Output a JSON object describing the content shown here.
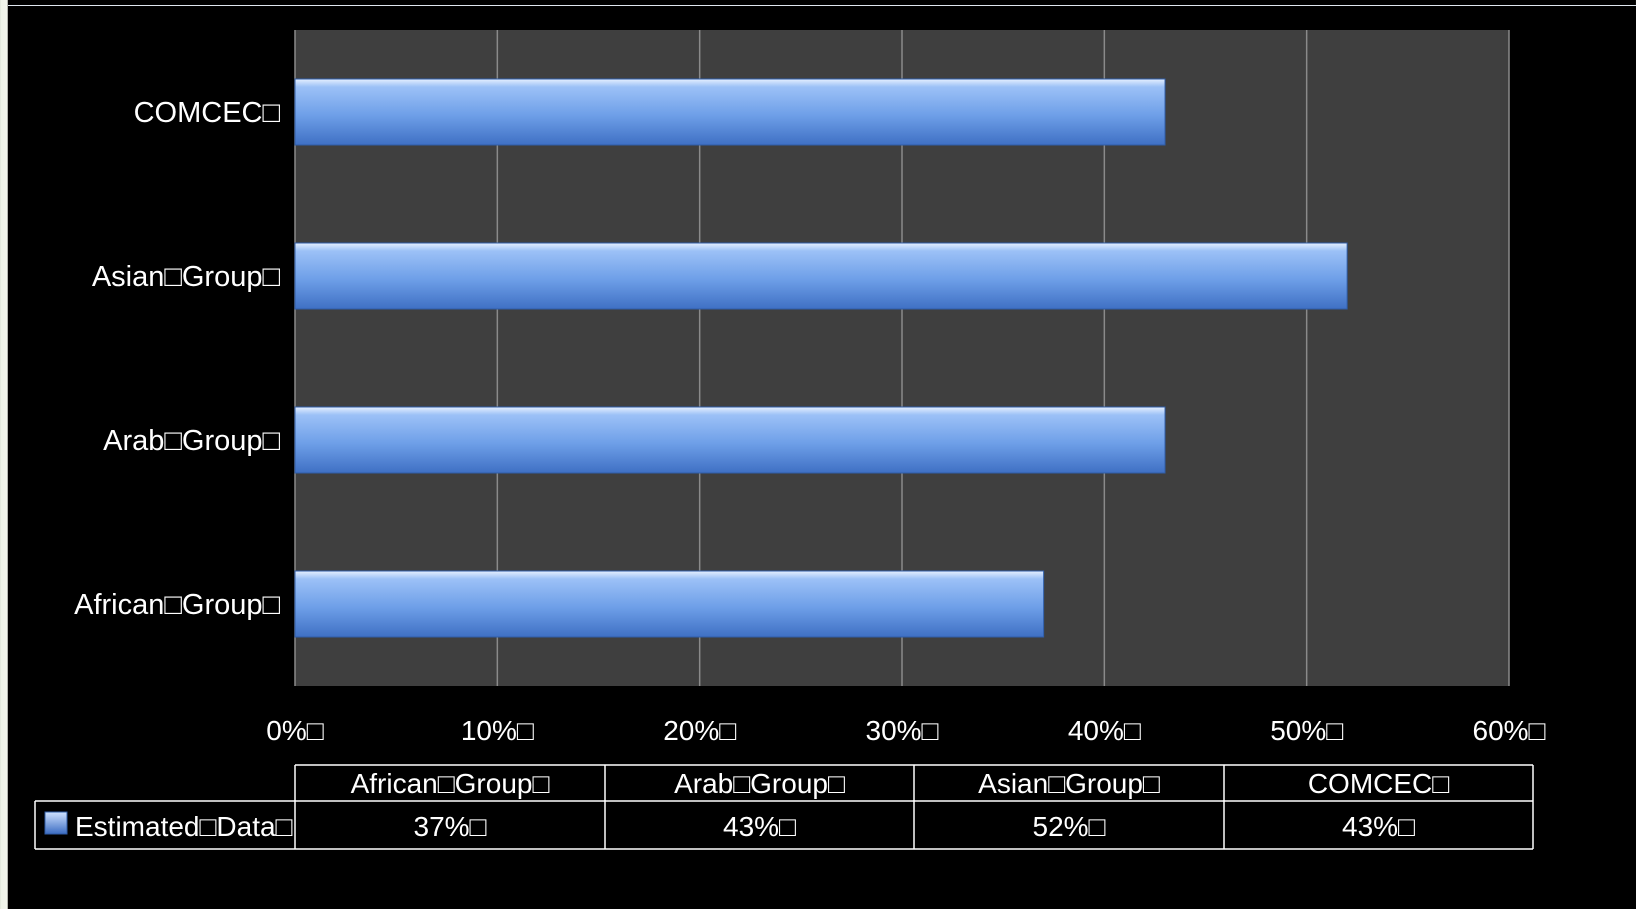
{
  "chart_data": {
    "type": "bar",
    "orientation": "horizontal",
    "categories": [
      "African□Group□",
      "Arab□Group□",
      "Asian□Group□",
      "COMCEC□"
    ],
    "series": [
      {
        "name": "Estimated□Data□",
        "values": [
          37,
          43,
          52,
          43
        ],
        "color": "#6aa0ea"
      }
    ],
    "xlim": [
      0,
      60
    ],
    "xticks": [
      0,
      10,
      20,
      30,
      40,
      50,
      60
    ],
    "xtick_labels": [
      "0%□",
      "10%□",
      "20%□",
      "30%□",
      "40%□",
      "50%□",
      "60%□"
    ],
    "grid": true,
    "plot_background": "#3f3f3f",
    "data_table": {
      "headers": [
        "African□Group□",
        "Arab□Group□",
        "Asian□Group□",
        "COMCEC□"
      ],
      "row_label": "Estimated□Data□",
      "values": [
        "37%□",
        "43%□",
        "52%□",
        "43%□"
      ]
    }
  }
}
